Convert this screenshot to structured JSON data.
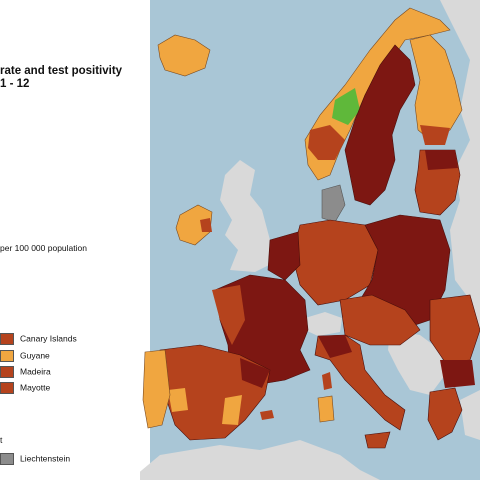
{
  "title_line1": "rate and test positivity",
  "title_line2": "1 - 12",
  "subtitle": "per 100 000 population",
  "legend_items": [
    {
      "label": "Canary Islands",
      "color": "#b5431d"
    },
    {
      "label": "Guyane",
      "color": "#f0a640"
    },
    {
      "label": "Madeira",
      "color": "#b5431d"
    },
    {
      "label": "Mayotte",
      "color": "#b5431d"
    }
  ],
  "nodata_title": "t",
  "nodata_item": {
    "label": "Liechtenstein",
    "color": "#8c8c8c"
  },
  "colors": {
    "sea": "#a9c6d6",
    "non_eu": "#d9d9d9",
    "dark_red": "#7d1712",
    "red": "#b5431d",
    "orange": "#f0a640",
    "green": "#5fb83a",
    "grey": "#8c8c8c"
  }
}
